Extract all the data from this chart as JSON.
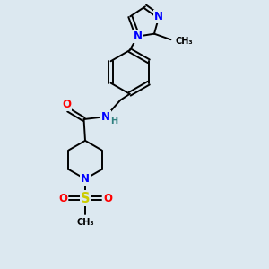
{
  "background_color": "#dce8f0",
  "bond_color": "#000000",
  "atom_colors": {
    "N": "#0000ff",
    "O": "#ff0000",
    "S": "#cccc00",
    "C": "#000000",
    "H": "#2f8080"
  },
  "font_size": 8.5,
  "fig_width": 3.0,
  "fig_height": 3.0,
  "dpi": 100
}
